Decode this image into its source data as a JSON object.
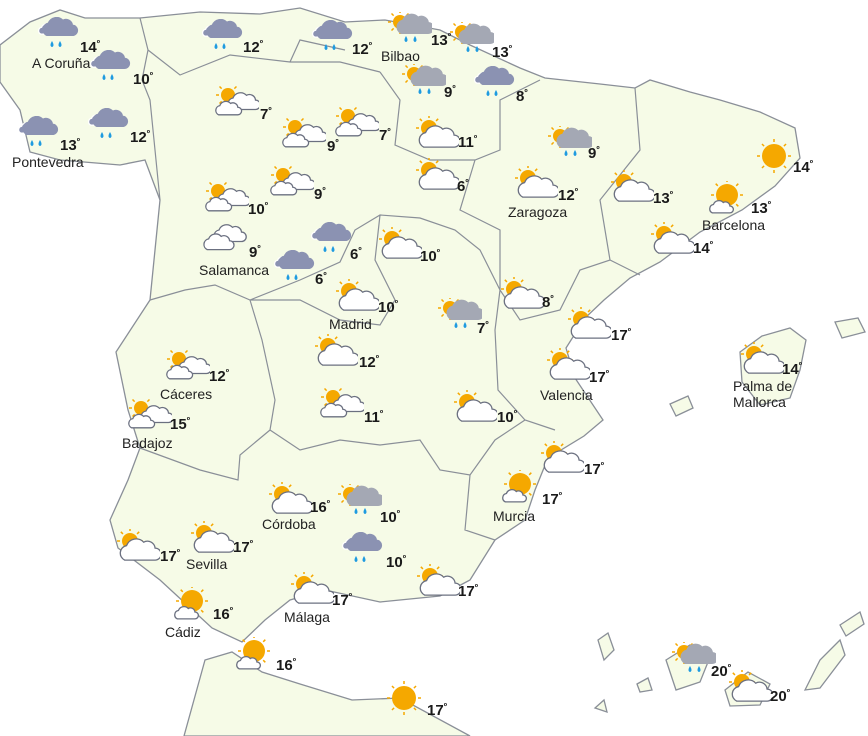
{
  "colors": {
    "land": "#f6fbe7",
    "border": "#8a8f98",
    "sun": "#f5a800",
    "rain_cloud": "#8b92b2",
    "grey_cloud": "#a4a8b4",
    "drop": "#1e9be0"
  },
  "degree_symbol": "º",
  "stations": [
    {
      "name": "A Coruña",
      "temp": "14",
      "icon": "rain"
    },
    {
      "name": "",
      "temp": "10",
      "icon": "rain"
    },
    {
      "name": "Pontevedra",
      "temp": "13",
      "icon": "rain"
    },
    {
      "name": "",
      "temp": "12",
      "icon": "rain"
    },
    {
      "name": "",
      "temp": "12",
      "icon": "rain"
    },
    {
      "name": "",
      "temp": "12",
      "icon": "rain"
    },
    {
      "name": "Bilbao",
      "temp": "13",
      "icon": "sun-cloud-rain"
    },
    {
      "name": "",
      "temp": "13",
      "icon": "sun-cloud-rain"
    },
    {
      "name": "",
      "temp": "9",
      "icon": "sun-cloud-rain"
    },
    {
      "name": "",
      "temp": "8",
      "icon": "rain"
    },
    {
      "name": "",
      "temp": "7",
      "icon": "sun-two-clouds"
    },
    {
      "name": "",
      "temp": "9",
      "icon": "sun-two-clouds"
    },
    {
      "name": "",
      "temp": "7",
      "icon": "sun-two-clouds"
    },
    {
      "name": "",
      "temp": "11",
      "icon": "sun-cloud"
    },
    {
      "name": "",
      "temp": "6",
      "icon": "sun-cloud"
    },
    {
      "name": "",
      "temp": "9",
      "icon": "sun-cloud-rain"
    },
    {
      "name": "Zaragoza",
      "temp": "12",
      "icon": "sun-cloud"
    },
    {
      "name": "",
      "temp": "13",
      "icon": "sun-cloud"
    },
    {
      "name": "",
      "temp": "14",
      "icon": "sun"
    },
    {
      "name": "Barcelona",
      "temp": "13",
      "icon": "sun-small-cloud"
    },
    {
      "name": "",
      "temp": "14",
      "icon": "sun-cloud"
    },
    {
      "name": "",
      "temp": "10",
      "icon": "sun-two-clouds"
    },
    {
      "name": "",
      "temp": "9",
      "icon": "sun-two-clouds"
    },
    {
      "name": "Salamanca",
      "temp": "9",
      "icon": "cloudy"
    },
    {
      "name": "",
      "temp": "6",
      "icon": "rain"
    },
    {
      "name": "",
      "temp": "6",
      "icon": "rain"
    },
    {
      "name": "",
      "temp": "10",
      "icon": "sun-cloud"
    },
    {
      "name": "Madrid",
      "temp": "10",
      "icon": "sun-cloud"
    },
    {
      "name": "",
      "temp": "7",
      "icon": "sun-cloud-rain"
    },
    {
      "name": "",
      "temp": "8",
      "icon": "sun-cloud"
    },
    {
      "name": "",
      "temp": "17",
      "icon": "sun-cloud"
    },
    {
      "name": "Valencia",
      "temp": "17",
      "icon": "sun-cloud"
    },
    {
      "name": "",
      "temp": "12",
      "icon": "sun-cloud"
    },
    {
      "name": "Cáceres",
      "temp": "12",
      "icon": "sun-two-clouds"
    },
    {
      "name": "",
      "temp": "11",
      "icon": "sun-two-clouds"
    },
    {
      "name": "",
      "temp": "10",
      "icon": "sun-cloud"
    },
    {
      "name": "Badajoz",
      "temp": "15",
      "icon": "sun-two-clouds"
    },
    {
      "name": "",
      "temp": "17",
      "icon": "sun-cloud"
    },
    {
      "name": "Murcia",
      "temp": "17",
      "icon": "sun-small-cloud"
    },
    {
      "name": "Córdoba",
      "temp": "16",
      "icon": "sun-cloud"
    },
    {
      "name": "",
      "temp": "10",
      "icon": "sun-cloud-rain"
    },
    {
      "name": "",
      "temp": "10",
      "icon": "rain"
    },
    {
      "name": "",
      "temp": "17",
      "icon": "sun-cloud"
    },
    {
      "name": "Sevilla",
      "temp": "17",
      "icon": "sun-cloud"
    },
    {
      "name": "Málaga",
      "temp": "17",
      "icon": "sun-cloud"
    },
    {
      "name": "",
      "temp": "17",
      "icon": "sun-cloud"
    },
    {
      "name": "Cádiz",
      "temp": "16",
      "icon": "sun-small-cloud"
    },
    {
      "name": "",
      "temp": "16",
      "icon": "sun-small-cloud"
    },
    {
      "name": "",
      "temp": "17",
      "icon": "sun"
    },
    {
      "name": "Palma de\nMallorca",
      "temp": "14",
      "icon": "sun-cloud"
    },
    {
      "name": "",
      "temp": "20",
      "icon": "sun-cloud-rain"
    },
    {
      "name": "",
      "temp": "20",
      "icon": "sun-cloud"
    }
  ]
}
